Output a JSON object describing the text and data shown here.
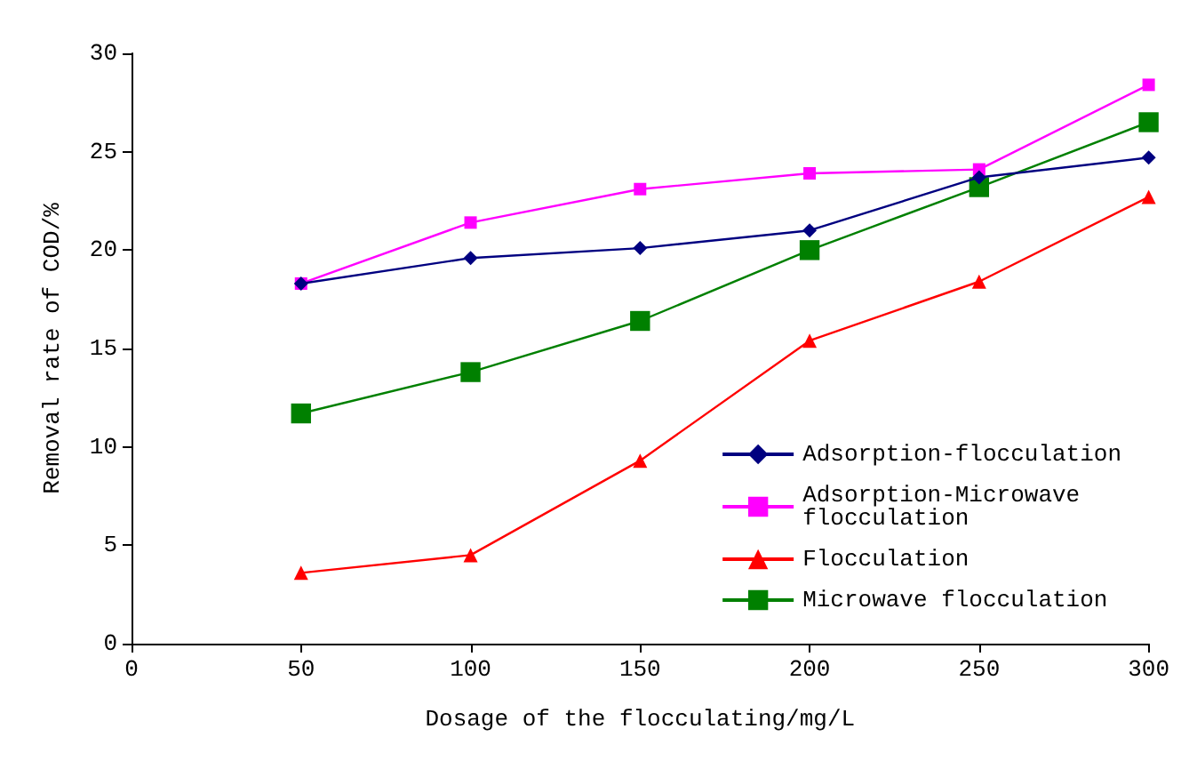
{
  "chart_data": {
    "type": "line",
    "xlabel": "Dosage of the flocculating/mg/L",
    "ylabel": "Removal rate of COD/%",
    "x": [
      50,
      100,
      150,
      200,
      250,
      300
    ],
    "series": [
      {
        "name": "Adsorption-flocculation",
        "color": "#000080",
        "marker": "diamond",
        "values": [
          18.3,
          19.6,
          20.1,
          21.0,
          23.7,
          24.7
        ]
      },
      {
        "name": "Adsorption-Microwave\nflocculation",
        "color": "#ff00ff",
        "marker": "square",
        "values": [
          18.3,
          21.4,
          23.1,
          23.9,
          24.1,
          28.4
        ]
      },
      {
        "name": "Flocculation",
        "color": "#ff0000",
        "marker": "triangle",
        "values": [
          3.6,
          4.5,
          9.3,
          15.4,
          18.4,
          22.7
        ]
      },
      {
        "name": "Microwave flocculation",
        "color": "#008000",
        "marker": "square",
        "values": [
          11.7,
          13.8,
          16.4,
          20.0,
          23.2,
          26.5
        ]
      }
    ],
    "xlim": [
      0,
      300
    ],
    "xticks": [
      0,
      50,
      100,
      150,
      200,
      250,
      300
    ],
    "ylim": [
      0,
      30
    ],
    "yticks": [
      0,
      5,
      10,
      15,
      20,
      25,
      30
    ],
    "grid": false,
    "legend": "bottom right"
  }
}
